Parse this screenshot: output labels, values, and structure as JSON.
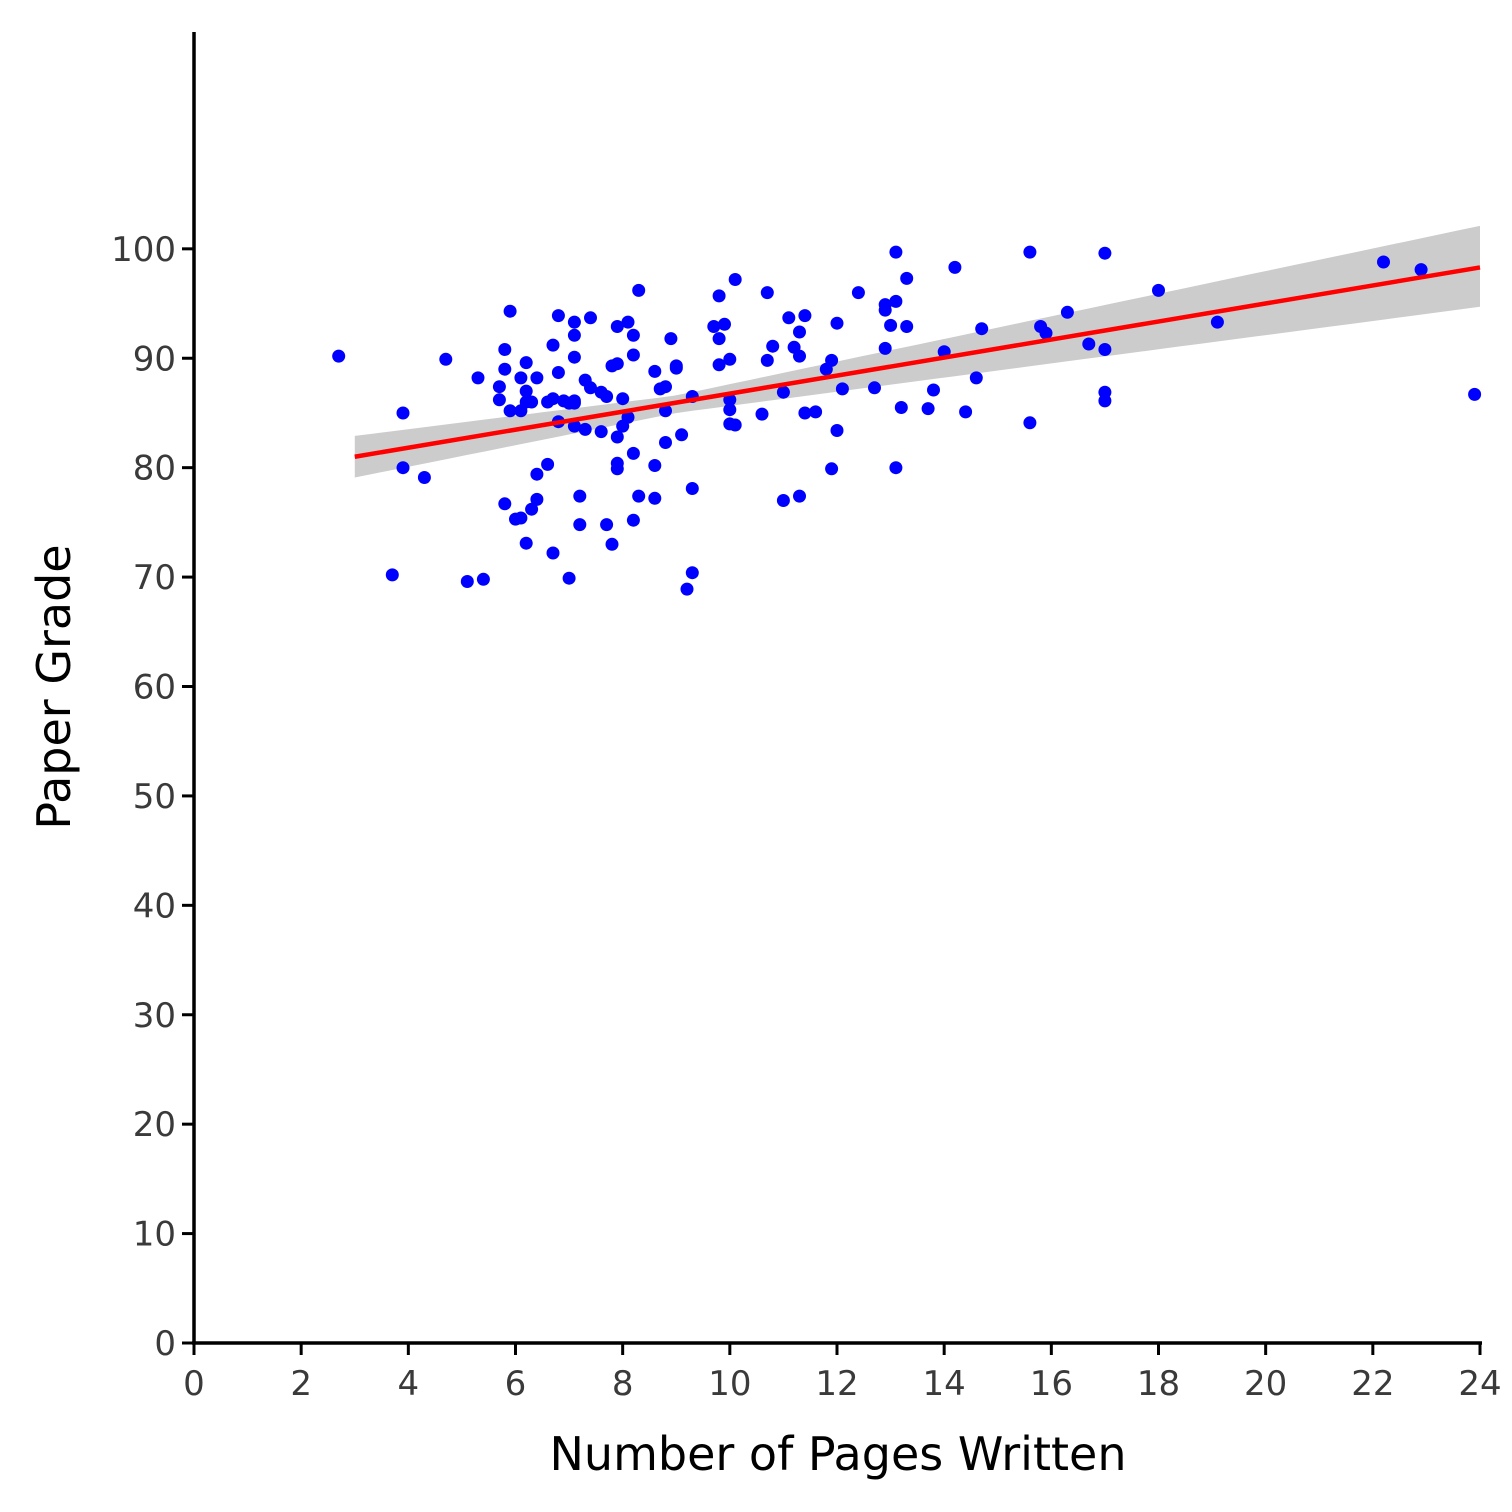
{
  "chart_data": {
    "type": "scatter",
    "xlabel": "Number of Pages Written",
    "ylabel": "Paper Grade",
    "xlim": [
      0,
      24
    ],
    "ylim": [
      0,
      120
    ],
    "x_ticks": [
      0,
      2,
      4,
      6,
      8,
      10,
      12,
      14,
      16,
      18,
      20,
      22,
      24
    ],
    "y_ticks": [
      0,
      10,
      20,
      30,
      40,
      50,
      60,
      70,
      80,
      90,
      100
    ],
    "grid": false,
    "colors": {
      "points": "#0000ff",
      "fit_line": "#ff0000",
      "ci_band": "#cccccc",
      "axis": "#000000"
    },
    "points": [
      [
        2.7,
        90.2
      ],
      [
        3.7,
        70.2
      ],
      [
        3.9,
        85
      ],
      [
        3.9,
        80
      ],
      [
        4.3,
        79.1
      ],
      [
        4.7,
        89.9
      ],
      [
        5.1,
        69.6
      ],
      [
        5.3,
        88.2
      ],
      [
        5.4,
        69.8
      ],
      [
        5.7,
        87.4
      ],
      [
        5.7,
        86.2
      ],
      [
        5.8,
        90.8
      ],
      [
        5.8,
        89
      ],
      [
        5.8,
        76.7
      ],
      [
        5.9,
        94.3
      ],
      [
        5.9,
        85.2
      ],
      [
        6.0,
        75.3
      ],
      [
        6.1,
        88.2
      ],
      [
        6.1,
        85.2
      ],
      [
        6.1,
        75.4
      ],
      [
        6.2,
        89.6
      ],
      [
        6.2,
        87
      ],
      [
        6.2,
        86
      ],
      [
        6.2,
        73.1
      ],
      [
        6.3,
        86
      ],
      [
        6.3,
        76.2
      ],
      [
        6.4,
        88.2
      ],
      [
        6.4,
        79.4
      ],
      [
        6.4,
        77.1
      ],
      [
        6.6,
        86
      ],
      [
        6.6,
        80.3
      ],
      [
        6.7,
        91.2
      ],
      [
        6.7,
        86.3
      ],
      [
        6.7,
        72.2
      ],
      [
        6.8,
        93.9
      ],
      [
        6.8,
        88.7
      ],
      [
        6.8,
        84.2
      ],
      [
        6.9,
        86.1
      ],
      [
        7.0,
        85.9
      ],
      [
        7.0,
        69.9
      ],
      [
        7.1,
        93.3
      ],
      [
        7.1,
        92.1
      ],
      [
        7.1,
        90.1
      ],
      [
        7.1,
        86.1
      ],
      [
        7.1,
        85.9
      ],
      [
        7.1,
        83.8
      ],
      [
        7.2,
        74.8
      ],
      [
        7.2,
        77.4
      ],
      [
        7.3,
        88
      ],
      [
        7.3,
        83.5
      ],
      [
        7.4,
        93.7
      ],
      [
        7.4,
        87.3
      ],
      [
        7.6,
        86.9
      ],
      [
        7.6,
        83.3
      ],
      [
        7.7,
        86.5
      ],
      [
        7.7,
        74.8
      ],
      [
        7.8,
        89.3
      ],
      [
        7.8,
        73
      ],
      [
        7.9,
        92.9
      ],
      [
        7.9,
        89.5
      ],
      [
        7.9,
        82.8
      ],
      [
        7.9,
        79.9
      ],
      [
        7.9,
        80.4
      ],
      [
        8.0,
        86.3
      ],
      [
        8.0,
        83.8
      ],
      [
        8.1,
        93.3
      ],
      [
        8.1,
        84.6
      ],
      [
        8.2,
        92.1
      ],
      [
        8.2,
        90.3
      ],
      [
        8.2,
        81.3
      ],
      [
        8.2,
        75.2
      ],
      [
        8.3,
        96.2
      ],
      [
        8.3,
        77.4
      ],
      [
        8.6,
        77.2
      ],
      [
        8.6,
        88.8
      ],
      [
        8.6,
        80.2
      ],
      [
        8.7,
        87.2
      ],
      [
        8.8,
        85.2
      ],
      [
        8.8,
        82.3
      ],
      [
        8.8,
        87.4
      ],
      [
        8.9,
        91.8
      ],
      [
        9.0,
        89.3
      ],
      [
        9.0,
        89.1
      ],
      [
        9.1,
        83
      ],
      [
        9.2,
        68.9
      ],
      [
        9.3,
        86.5
      ],
      [
        9.3,
        78.1
      ],
      [
        9.3,
        70.4
      ],
      [
        9.7,
        92.9
      ],
      [
        9.8,
        91.8
      ],
      [
        9.8,
        89.4
      ],
      [
        9.8,
        95.7
      ],
      [
        9.9,
        93.1
      ],
      [
        10.0,
        86.2
      ],
      [
        10.0,
        85.3
      ],
      [
        10.0,
        89.9
      ],
      [
        10.0,
        84
      ],
      [
        10.1,
        97.2
      ],
      [
        10.1,
        83.9
      ],
      [
        10.6,
        84.9
      ],
      [
        10.7,
        96
      ],
      [
        10.8,
        91.1
      ],
      [
        10.7,
        89.8
      ],
      [
        11.0,
        86.9
      ],
      [
        11.1,
        93.7
      ],
      [
        11.0,
        77
      ],
      [
        11.2,
        91
      ],
      [
        11.3,
        92.4
      ],
      [
        11.3,
        90.2
      ],
      [
        11.3,
        77.4
      ],
      [
        11.4,
        93.9
      ],
      [
        11.4,
        85
      ],
      [
        11.6,
        85.1
      ],
      [
        11.8,
        89
      ],
      [
        11.9,
        89.8
      ],
      [
        11.9,
        79.9
      ],
      [
        12.0,
        93.2
      ],
      [
        12.0,
        83.4
      ],
      [
        12.1,
        87.2
      ],
      [
        12.4,
        96
      ],
      [
        12.7,
        87.3
      ],
      [
        12.9,
        94.4
      ],
      [
        12.9,
        94.9
      ],
      [
        12.9,
        90.9
      ],
      [
        13.0,
        93
      ],
      [
        13.1,
        99.7
      ],
      [
        13.1,
        95.2
      ],
      [
        13.1,
        80
      ],
      [
        13.2,
        85.5
      ],
      [
        13.3,
        97.3
      ],
      [
        13.3,
        92.9
      ],
      [
        13.7,
        85.4
      ],
      [
        13.8,
        87.1
      ],
      [
        14.0,
        90.6
      ],
      [
        14.2,
        98.3
      ],
      [
        14.4,
        85.1
      ],
      [
        14.6,
        88.2
      ],
      [
        14.7,
        92.7
      ],
      [
        15.6,
        99.7
      ],
      [
        15.6,
        84.1
      ],
      [
        15.8,
        92.9
      ],
      [
        15.9,
        92.3
      ],
      [
        16.3,
        94.2
      ],
      [
        16.7,
        91.3
      ],
      [
        17.0,
        99.6
      ],
      [
        17.0,
        90.8
      ],
      [
        17.0,
        86.9
      ],
      [
        17.0,
        86.1
      ],
      [
        18.0,
        96.2
      ],
      [
        19.1,
        93.3
      ],
      [
        22.2,
        98.8
      ],
      [
        22.9,
        98.1
      ],
      [
        23.9,
        86.7
      ]
    ],
    "fit_line": {
      "x": [
        3,
        24
      ],
      "y": [
        81.0,
        98.3
      ]
    },
    "confidence_band": {
      "x": [
        3,
        9,
        24
      ],
      "lower": [
        79.1,
        85.0,
        94.7
      ],
      "upper": [
        82.9,
        86.6,
        102.1
      ]
    }
  }
}
